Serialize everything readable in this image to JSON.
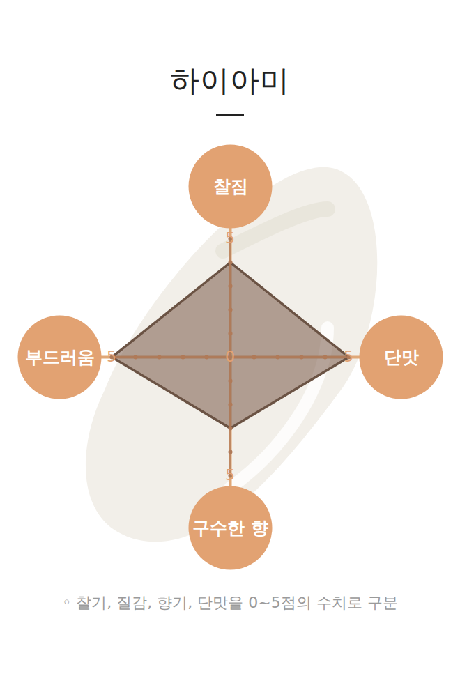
{
  "chart_data": {
    "type": "radar",
    "title": "하이아미",
    "categories": [
      "찰짐",
      "단맛",
      "구수한 향",
      "부드러움"
    ],
    "values": [
      4,
      5,
      3,
      5
    ],
    "rlim": [
      0,
      5
    ],
    "rticks": [
      0,
      5
    ],
    "rminor_ticks": [
      1,
      2,
      3,
      4
    ],
    "color": "#6b5344",
    "caption": "◦ 찰기, 질감, 향기, 단맛을 0~5점의 수치로 구분"
  }
}
